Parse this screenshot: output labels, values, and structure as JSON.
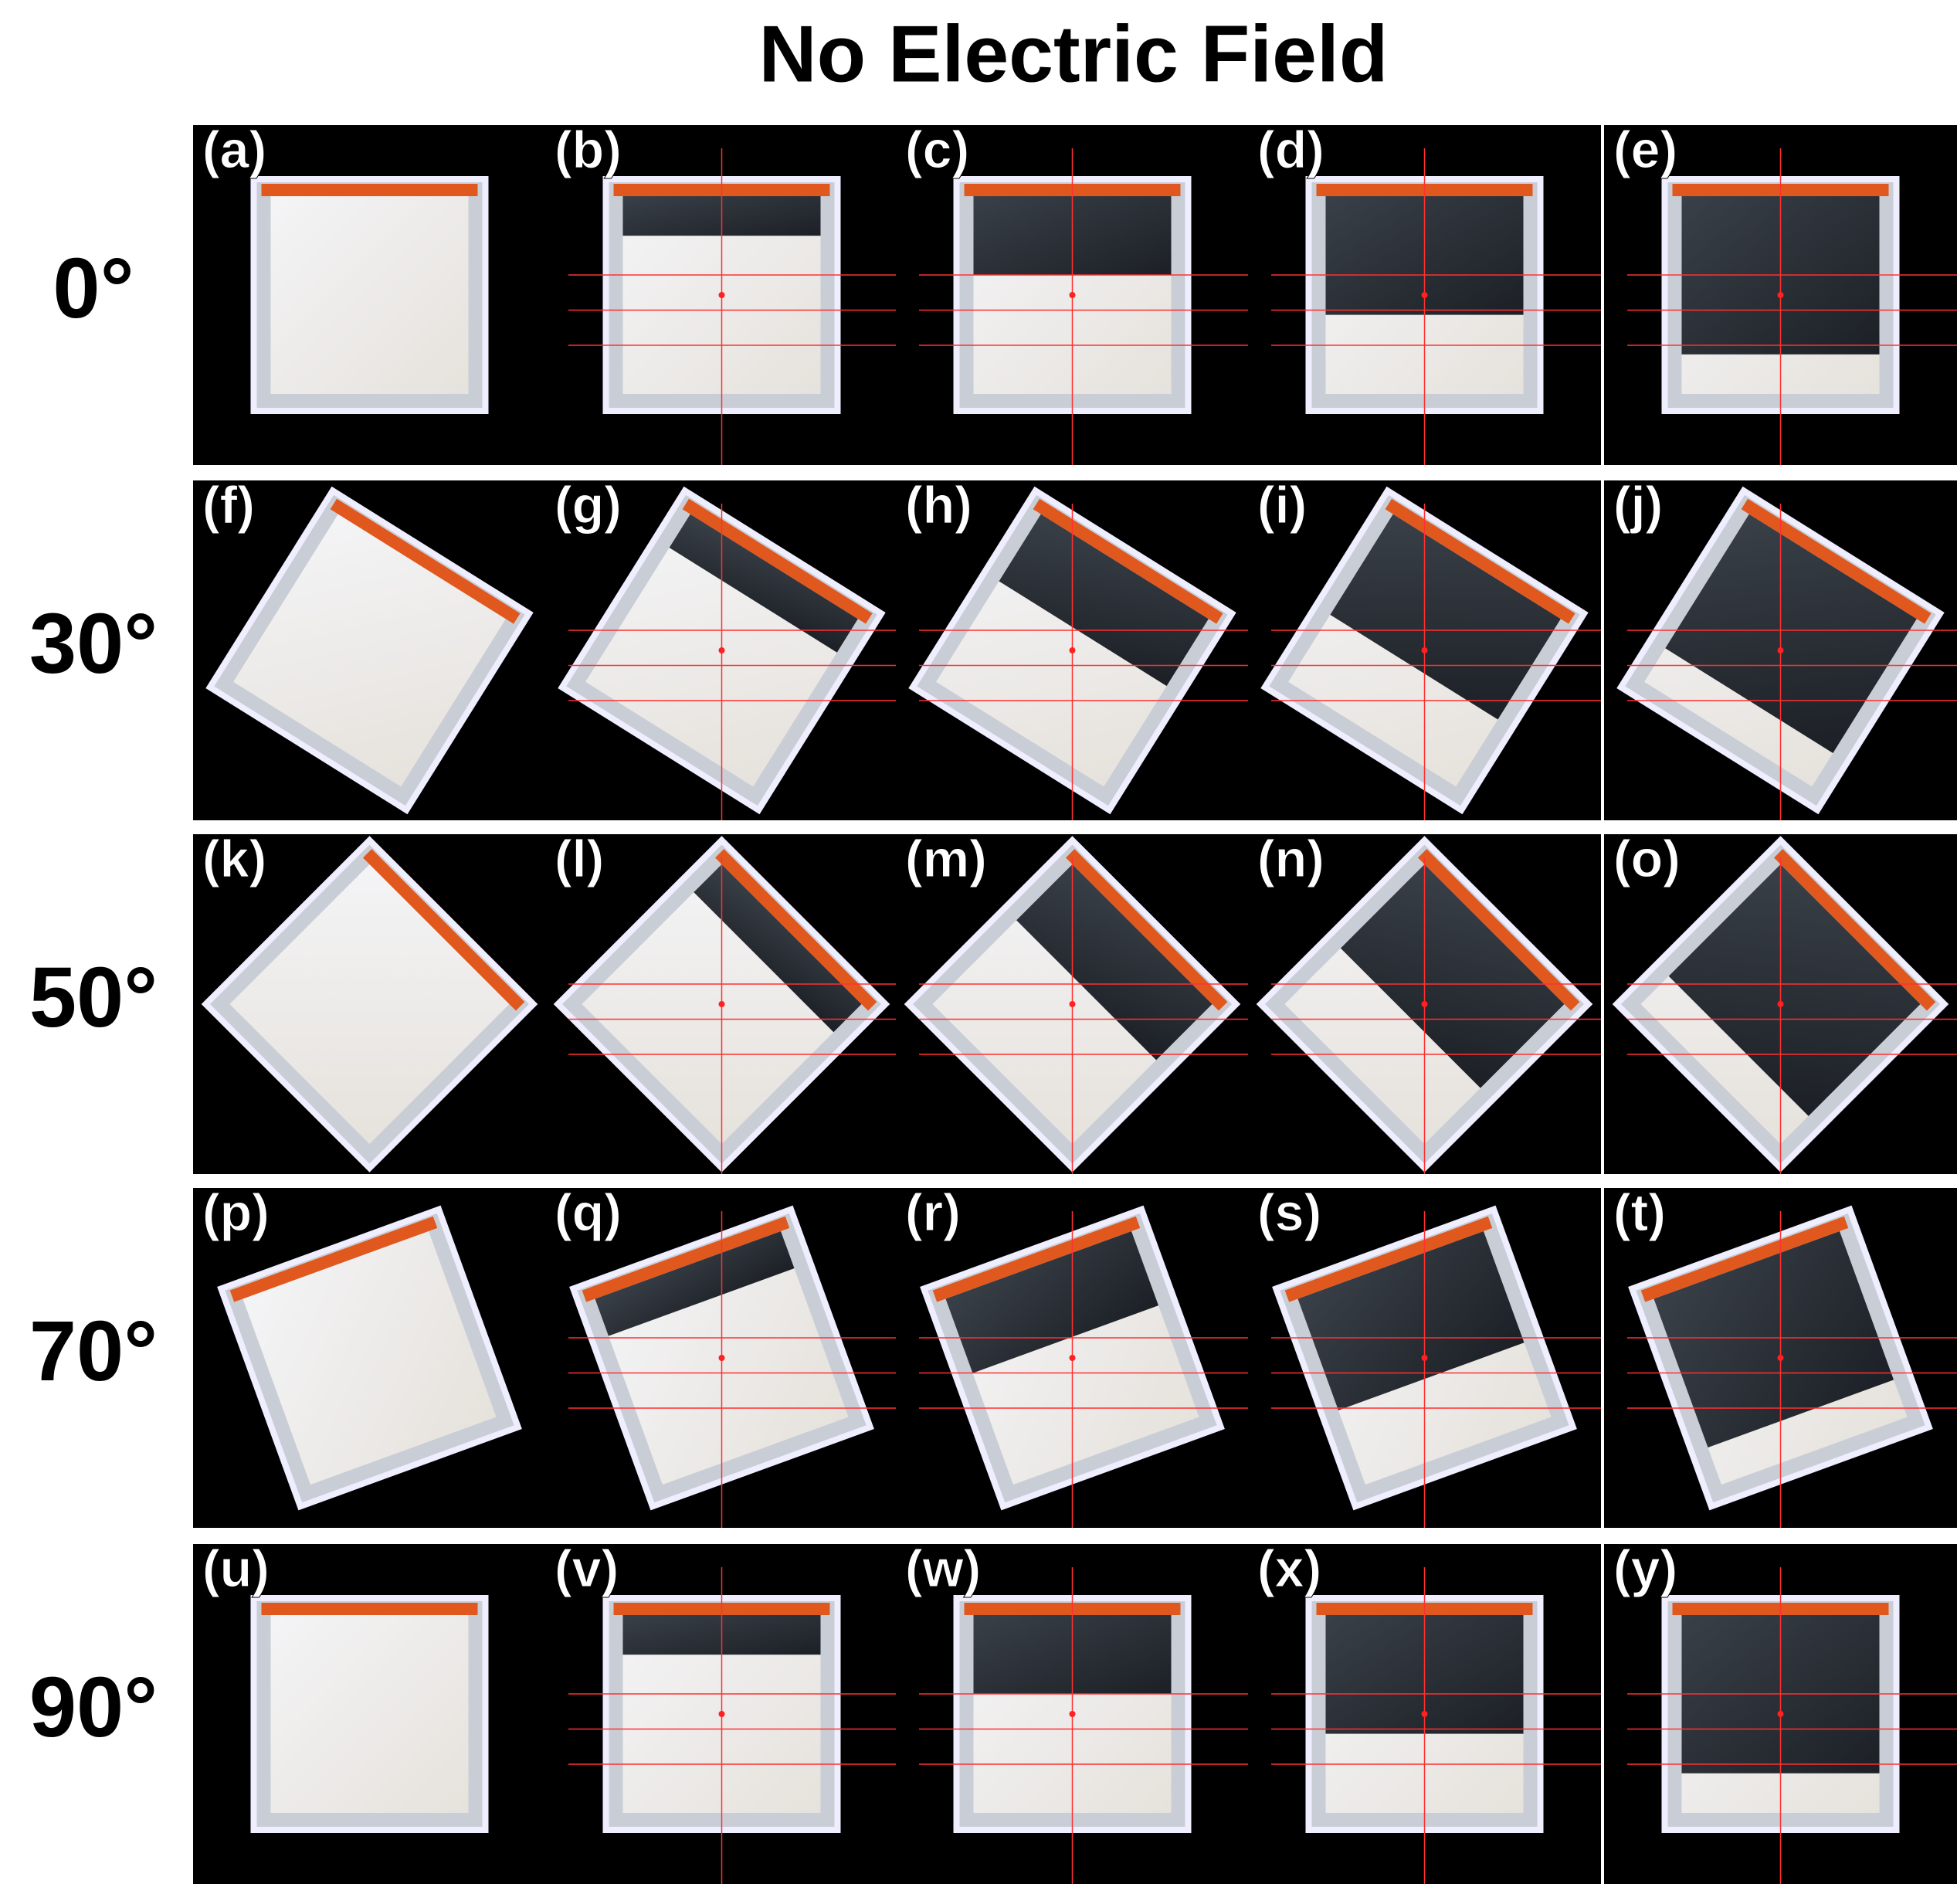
{
  "title": "No Electric Field",
  "rows": [
    {
      "label": "0°",
      "panels": [
        "(a)",
        "(b)",
        "(c)",
        "(d)",
        "(e)"
      ]
    },
    {
      "label": "30°",
      "panels": [
        "(f)",
        "(g)",
        "(h)",
        "(i)",
        "(j)"
      ]
    },
    {
      "label": "50°",
      "panels": [
        "(k)",
        "(l)",
        "(m)",
        "(n)",
        "(o)"
      ]
    },
    {
      "label": "70°",
      "panels": [
        "(p)",
        "(q)",
        "(r)",
        "(s)",
        "(t)"
      ]
    },
    {
      "label": "90°",
      "panels": [
        "(u)",
        "(v)",
        "(w)",
        "(x)",
        "(y)"
      ]
    }
  ]
}
